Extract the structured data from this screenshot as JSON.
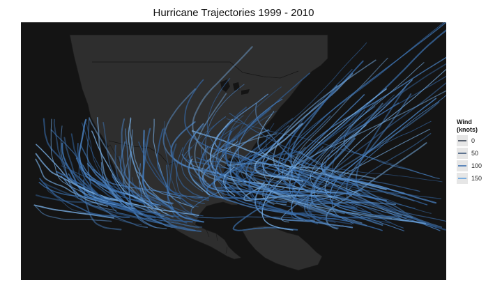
{
  "title": "Hurricane Trajectories 1999 - 2010",
  "legend": {
    "title": "Wind\n(knots)",
    "items": [
      {
        "label": "0",
        "color": "#5a6370"
      },
      {
        "label": "50",
        "color": "#5f7490"
      },
      {
        "label": "100",
        "color": "#5f88bb"
      },
      {
        "label": "150",
        "color": "#7aaee0"
      }
    ]
  },
  "colors": {
    "background": "#141414",
    "land": "#2e2e2e",
    "borders": "#1b1b1b",
    "track": "#3d72b0"
  }
}
